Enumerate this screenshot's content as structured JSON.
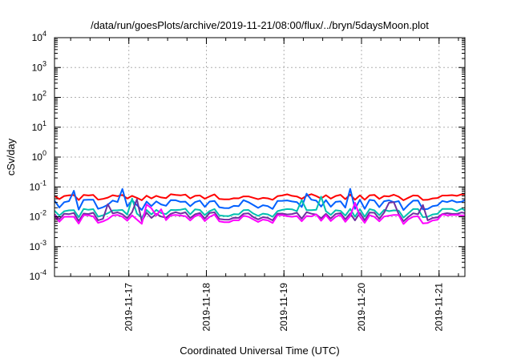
{
  "chart_data": {
    "type": "line",
    "title": "/data/run/goesPlots/archive/2019-11-21/08:00/flux/../bryn/5daysMoon.plot",
    "xlabel": "Coordinated Universal Time (UTC)",
    "ylabel": "cSv/day",
    "yscale": "log",
    "ylim": [
      0.0001,
      10000
    ],
    "y_ticks": [
      {
        "base": "10",
        "exp": "-4"
      },
      {
        "base": "10",
        "exp": "-3"
      },
      {
        "base": "10",
        "exp": "-2"
      },
      {
        "base": "10",
        "exp": "-1"
      },
      {
        "base": "10",
        "exp": "0"
      },
      {
        "base": "10",
        "exp": "1"
      },
      {
        "base": "10",
        "exp": "2"
      },
      {
        "base": "10",
        "exp": "3"
      },
      {
        "base": "10",
        "exp": "4"
      }
    ],
    "xlim": [
      "2019-11-16 01:00",
      "2019-11-21 08:00"
    ],
    "x_ticks": [
      "2019-11-17",
      "2019-11-18",
      "2019-11-19",
      "2019-11-20",
      "2019-11-21"
    ],
    "grid": true,
    "series": [
      {
        "color": "#ff0000",
        "base": 0.052,
        "low": 0.035,
        "style": "upper",
        "x_step_hours": 1.5
      },
      {
        "color": "#0060ff",
        "base": 0.034,
        "low": 0.016,
        "style": "mid",
        "x_step_hours": 1.5
      },
      {
        "color": "#00c0b0",
        "base": 0.017,
        "low": 0.009,
        "style": "mid2",
        "x_step_hours": 1.5
      },
      {
        "color": "#7030a0",
        "base": 0.013,
        "low": 0.0068,
        "style": "low",
        "x_step_hours": 1.5
      },
      {
        "color": "#ff00ff",
        "base": 0.011,
        "low": 0.0055,
        "style": "low2",
        "x_step_hours": 1.5
      }
    ]
  }
}
